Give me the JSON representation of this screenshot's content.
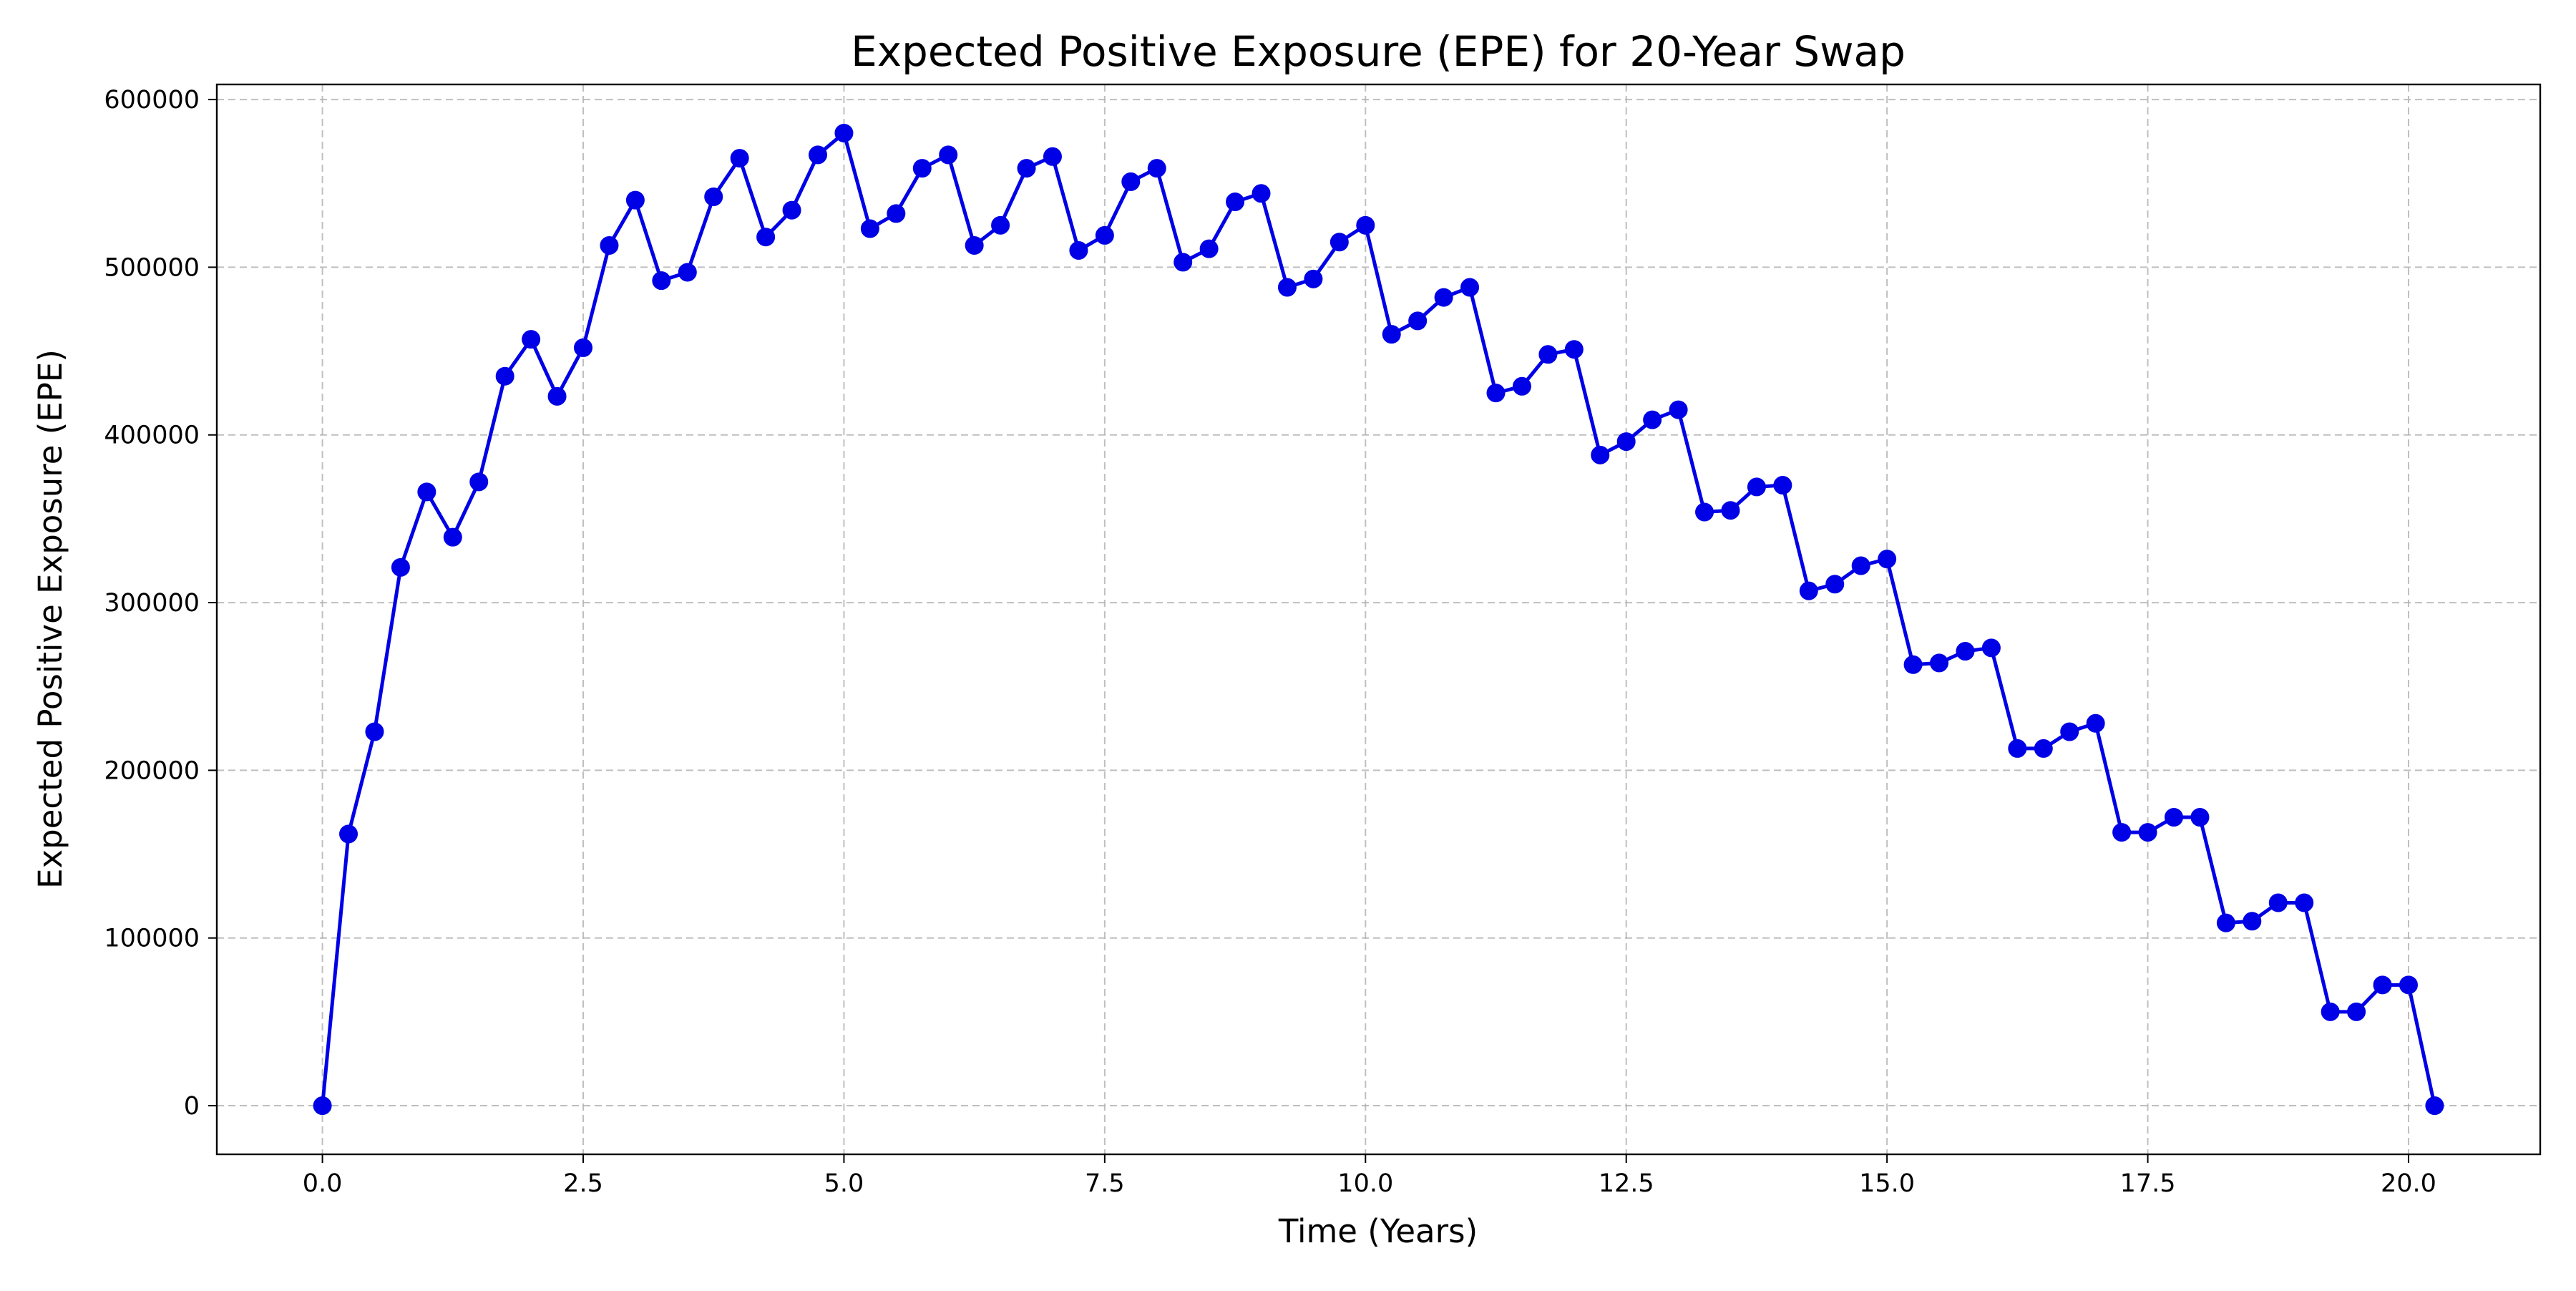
{
  "chart_data": {
    "type": "line",
    "title": "Expected Positive Exposure (EPE) for 20-Year Swap",
    "xlabel": "Time (Years)",
    "ylabel": "Expected Positive Exposure (EPE)",
    "xlim": [
      -1.0125,
      21.2625
    ],
    "ylim": [
      -29000,
      609000
    ],
    "xticks": [
      0.0,
      2.5,
      5.0,
      7.5,
      10.0,
      12.5,
      15.0,
      17.5,
      20.0
    ],
    "xtick_labels": [
      "0.0",
      "2.5",
      "5.0",
      "7.5",
      "10.0",
      "12.5",
      "15.0",
      "17.5",
      "20.0"
    ],
    "yticks": [
      0,
      100000,
      200000,
      300000,
      400000,
      500000,
      600000
    ],
    "ytick_labels": [
      "0",
      "100000",
      "200000",
      "300000",
      "400000",
      "500000",
      "600000"
    ],
    "grid": true,
    "line_color": "#0000e6",
    "marker": "circle",
    "series": [
      {
        "x": [
          0.0,
          0.25,
          0.5,
          0.75,
          1.0,
          1.25,
          1.5,
          1.75,
          2.0,
          2.25,
          2.5,
          2.75,
          3.0,
          3.25,
          3.5,
          3.75,
          4.0,
          4.25,
          4.5,
          4.75,
          5.0,
          5.25,
          5.5,
          5.75,
          6.0,
          6.25,
          6.5,
          6.75,
          7.0,
          7.25,
          7.5,
          7.75,
          8.0,
          8.25,
          8.5,
          8.75,
          9.0,
          9.25,
          9.5,
          9.75,
          10.0,
          10.25,
          10.5,
          10.75,
          11.0,
          11.25,
          11.5,
          11.75,
          12.0,
          12.25,
          12.5,
          12.75,
          13.0,
          13.25,
          13.5,
          13.75,
          14.0,
          14.25,
          14.5,
          14.75,
          15.0,
          15.25,
          15.5,
          15.75,
          16.0,
          16.25,
          16.5,
          16.75,
          17.0,
          17.25,
          17.5,
          17.75,
          18.0,
          18.25,
          18.5,
          18.75,
          19.0,
          19.25,
          19.5,
          19.75,
          20.0,
          20.25
        ],
        "y": [
          0,
          162000,
          223000,
          321000,
          366000,
          339000,
          372000,
          435000,
          457000,
          423000,
          452000,
          513000,
          540000,
          492000,
          497000,
          542000,
          565000,
          518000,
          534000,
          567000,
          580000,
          523000,
          532000,
          559000,
          567000,
          513000,
          525000,
          559000,
          566000,
          510000,
          519000,
          551000,
          559000,
          503000,
          511000,
          539000,
          544000,
          488000,
          493000,
          515000,
          525000,
          460000,
          468000,
          482000,
          488000,
          425000,
          429000,
          448000,
          451000,
          388000,
          396000,
          409000,
          415000,
          354000,
          355000,
          369000,
          370000,
          307000,
          311000,
          322000,
          326000,
          263000,
          264000,
          271000,
          273000,
          213000,
          213000,
          223000,
          228000,
          163000,
          163000,
          172000,
          172000,
          109000,
          110000,
          121000,
          121000,
          56000,
          56000,
          72000,
          72000,
          0
        ]
      }
    ]
  }
}
